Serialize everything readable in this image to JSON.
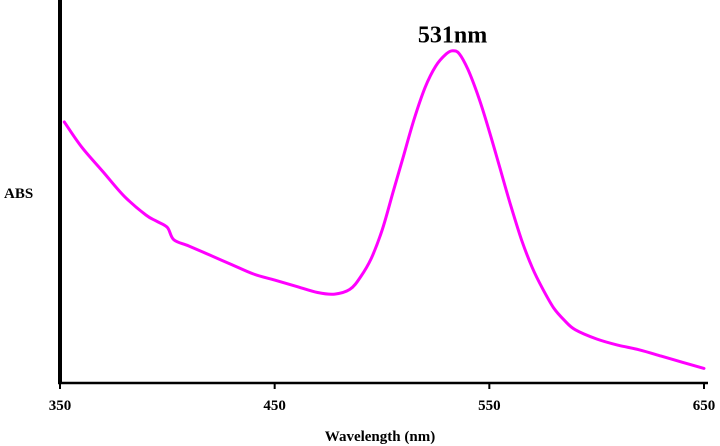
{
  "chart_data": {
    "type": "line",
    "title": "",
    "xlabel": "Wavelength (nm)",
    "ylabel": "ABS",
    "xlim": [
      350,
      650
    ],
    "ylim": [
      0,
      1
    ],
    "xticks": [
      350,
      450,
      550,
      650
    ],
    "xtick_labels": [
      "350",
      "450",
      "550",
      "650"
    ],
    "grid": false,
    "legend": "none",
    "series": [
      {
        "color": "#ff00ff",
        "x": [
          352,
          360,
          370,
          380,
          390,
          395,
          400,
          403,
          410,
          420,
          430,
          440,
          450,
          460,
          470,
          478,
          485,
          490,
          495,
          500,
          505,
          510,
          515,
          520,
          525,
          530,
          533,
          536,
          540,
          545,
          550,
          555,
          560,
          565,
          570,
          575,
          580,
          585,
          590,
          600,
          610,
          620,
          630,
          640,
          650
        ],
        "y": [
          0.8,
          0.72,
          0.64,
          0.56,
          0.5,
          0.48,
          0.46,
          0.42,
          0.4,
          0.37,
          0.34,
          0.31,
          0.29,
          0.27,
          0.25,
          0.245,
          0.26,
          0.3,
          0.36,
          0.45,
          0.57,
          0.69,
          0.81,
          0.91,
          0.98,
          1.02,
          1.03,
          1.02,
          0.97,
          0.88,
          0.77,
          0.65,
          0.53,
          0.42,
          0.33,
          0.26,
          0.2,
          0.16,
          0.13,
          0.1,
          0.08,
          0.065,
          0.045,
          0.025,
          0.005
        ]
      }
    ],
    "annotations": [
      {
        "text": "531nm",
        "x": 531,
        "y": 1.03
      }
    ]
  }
}
